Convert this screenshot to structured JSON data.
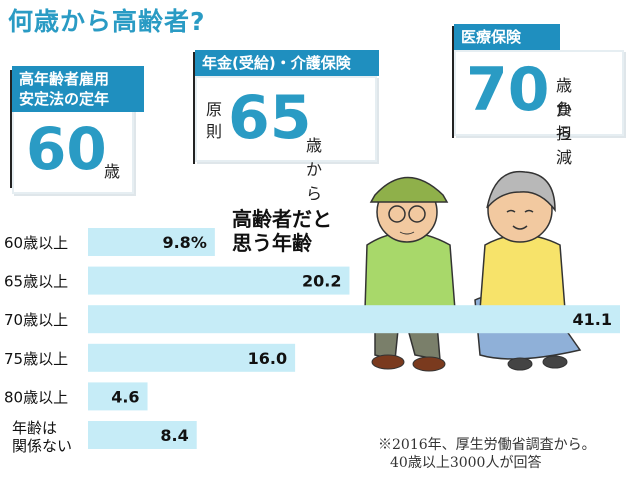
{
  "title": "何歳から高齢者?",
  "panels": {
    "law": {
      "head_line1": "高年齢者雇用",
      "head_line2": "安定法の定年",
      "number": "60",
      "suffix": "歳"
    },
    "pension": {
      "head": "年金(受給)・介護保険",
      "prefix_1": "原",
      "prefix_2": "則",
      "number": "65",
      "suffix": "歳から"
    },
    "medical": {
      "head": "医療保険",
      "number": "70",
      "suffix_1": "歳から",
      "suffix_2": "負担減"
    }
  },
  "chart_heading_1": "高齢者だと",
  "chart_heading_2": "思う年齢",
  "chart_data": {
    "type": "bar",
    "orientation": "horizontal",
    "categories": [
      "60歳以上",
      "65歳以上",
      "70歳以上",
      "75歳以上",
      "80歳以上",
      "年齢は関係ない"
    ],
    "category_lines": [
      [
        "60歳以上"
      ],
      [
        "65歳以上"
      ],
      [
        "70歳以上"
      ],
      [
        "75歳以上"
      ],
      [
        "80歳以上"
      ],
      [
        "年齢は",
        "関係ない"
      ]
    ],
    "values": [
      9.8,
      20.2,
      41.1,
      16.0,
      4.6,
      8.4
    ],
    "value_labels": [
      "9.8%",
      "20.2",
      "41.1",
      "16.0",
      "4.6",
      "8.4"
    ],
    "xlim": [
      0,
      41.1
    ],
    "color": "#c6ecf7"
  },
  "note_line1": "※2016年、厚生労働省調査から。",
  "note_line2": "40歳以上3000人が回答",
  "colors": {
    "accent": "#2a9bc4",
    "panel_head": "#1f8fbf",
    "bar": "#c6ecf7"
  }
}
